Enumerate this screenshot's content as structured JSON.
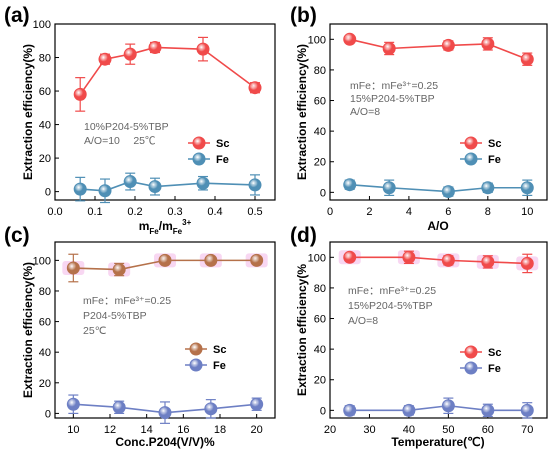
{
  "colors": {
    "sc_red": "#f04a4a",
    "sc_brown": "#b5714a",
    "fe_teal": "#4f8fb5",
    "fe_blue": "#6d7fc4",
    "legend_text": "#000000",
    "note_text": "#666666",
    "highlight": "#f6c9ee"
  },
  "chart_data": [
    {
      "type": "line",
      "panel_label": "(a)",
      "xlabel": {
        "base": "m",
        "sub1": "Fe",
        "mid": "/m",
        "sub2": "Fe",
        "sup": "3+"
      },
      "ylabel": "Extraction efficiency(%)",
      "xlim": [
        0.0,
        0.55
      ],
      "ylim": [
        -5,
        100
      ],
      "xticks": [
        0.0,
        0.1,
        0.2,
        0.3,
        0.4,
        0.5
      ],
      "xtick_labels": [
        "0.0",
        "0.1",
        "0.2",
        "0.3",
        "0.4",
        "0.5"
      ],
      "yticks": [
        0,
        20,
        40,
        60,
        80,
        100
      ],
      "ytick_labels": [
        "0",
        "20",
        "40",
        "60",
        "80",
        "100"
      ],
      "series": [
        {
          "name": "Sc",
          "color": "#f04a4a",
          "x": [
            0.063,
            0.125,
            0.188,
            0.25,
            0.37,
            0.5
          ],
          "y": [
            58,
            79,
            82,
            86,
            85,
            62
          ],
          "err": [
            10,
            3,
            6,
            3,
            7,
            3
          ]
        },
        {
          "name": "Fe",
          "color": "#4f8fb5",
          "x": [
            0.063,
            0.125,
            0.188,
            0.25,
            0.37,
            0.5
          ],
          "y": [
            1.5,
            0.5,
            6,
            3,
            5,
            4
          ],
          "err": [
            7,
            7,
            5,
            5,
            4,
            6
          ]
        }
      ],
      "legend_position": "right",
      "notes": [
        "10%P204-5%TBP",
        "A/O=10　 25℃"
      ]
    },
    {
      "type": "line",
      "panel_label": "(b)",
      "xlabel": "A/O",
      "ylabel": "Extraction efficiency(%)",
      "xlim": [
        0,
        11
      ],
      "ylim": [
        -5,
        110
      ],
      "xticks": [
        0,
        2,
        4,
        6,
        8,
        10
      ],
      "xtick_labels": [
        "0",
        "2",
        "4",
        "6",
        "8",
        "10"
      ],
      "yticks": [
        0,
        20,
        40,
        60,
        80,
        100
      ],
      "ytick_labels": [
        "0",
        "20",
        "40",
        "60",
        "80",
        "100"
      ],
      "series": [
        {
          "name": "Sc",
          "color": "#f04a4a",
          "x": [
            1,
            3,
            6,
            8,
            10
          ],
          "y": [
            100,
            94,
            96,
            97,
            87
          ],
          "err": [
            1,
            4,
            3,
            4,
            4
          ]
        },
        {
          "name": "Fe",
          "color": "#4f8fb5",
          "x": [
            1,
            3,
            6,
            8,
            10
          ],
          "y": [
            5,
            3,
            0.5,
            3,
            3
          ],
          "err": [
            3,
            5,
            3,
            3,
            5
          ]
        }
      ],
      "legend_position": "right",
      "notes": [
        "mFe：mFe³⁺=0.25",
        "15%P204-5%TBP",
        "A/O=8"
      ]
    },
    {
      "type": "line",
      "panel_label": "(c)",
      "xlabel": "Conc.P204(V/V)%",
      "ylabel": "Extraction efficiency(%)",
      "xlim": [
        9,
        21
      ],
      "ylim": [
        -3,
        112
      ],
      "xticks": [
        10,
        12,
        14,
        16,
        18,
        20
      ],
      "xtick_labels": [
        "10",
        "12",
        "14",
        "16",
        "18",
        "20"
      ],
      "yticks": [
        0,
        20,
        40,
        60,
        80,
        100
      ],
      "ytick_labels": [
        "0",
        "20",
        "40",
        "60",
        "80",
        "100"
      ],
      "series": [
        {
          "name": "Sc",
          "color": "#b5714a",
          "x": [
            10,
            12.5,
            15,
            17.5,
            20
          ],
          "y": [
            95,
            94,
            100,
            100,
            100
          ],
          "err": [
            9,
            4,
            1,
            1,
            1
          ]
        },
        {
          "name": "Fe",
          "color": "#6d7fc4",
          "x": [
            10,
            12.5,
            15,
            17.5,
            20
          ],
          "y": [
            6,
            4,
            0.5,
            3,
            6
          ],
          "err": [
            6,
            4,
            7,
            6,
            4
          ]
        }
      ],
      "legend_position": "right",
      "notes": [
        "mFe：mFe³⁺=0.25",
        "P204-5%TBP",
        "25℃"
      ]
    },
    {
      "type": "line",
      "panel_label": "(d)",
      "xlabel": "Temperature(℃)",
      "ylabel": "Extraction efficiency(%",
      "xlim": [
        20,
        75
      ],
      "ylim": [
        -5,
        110
      ],
      "xticks": [
        20,
        30,
        40,
        50,
        60,
        70
      ],
      "xtick_labels": [
        "20",
        "30",
        "40",
        "50",
        "60",
        "70"
      ],
      "yticks": [
        0,
        20,
        40,
        60,
        80,
        100
      ],
      "ytick_labels": [
        "0",
        "20",
        "40",
        "60",
        "80",
        "100"
      ],
      "series": [
        {
          "name": "Sc",
          "color": "#f04a4a",
          "x": [
            25,
            40,
            50,
            60,
            70
          ],
          "y": [
            100,
            100,
            98,
            97,
            96
          ],
          "err": [
            1,
            4,
            3,
            4,
            6
          ]
        },
        {
          "name": "Fe",
          "color": "#6d7fc4",
          "x": [
            25,
            40,
            50,
            60,
            70
          ],
          "y": [
            0,
            0,
            3,
            0,
            0
          ],
          "err": [
            3,
            3,
            5,
            4,
            5
          ]
        }
      ],
      "legend_position": "right",
      "notes": [
        "mFe：mFe³⁺=0.25",
        "15%P204-5%TBP",
        "A/O=8"
      ]
    }
  ]
}
